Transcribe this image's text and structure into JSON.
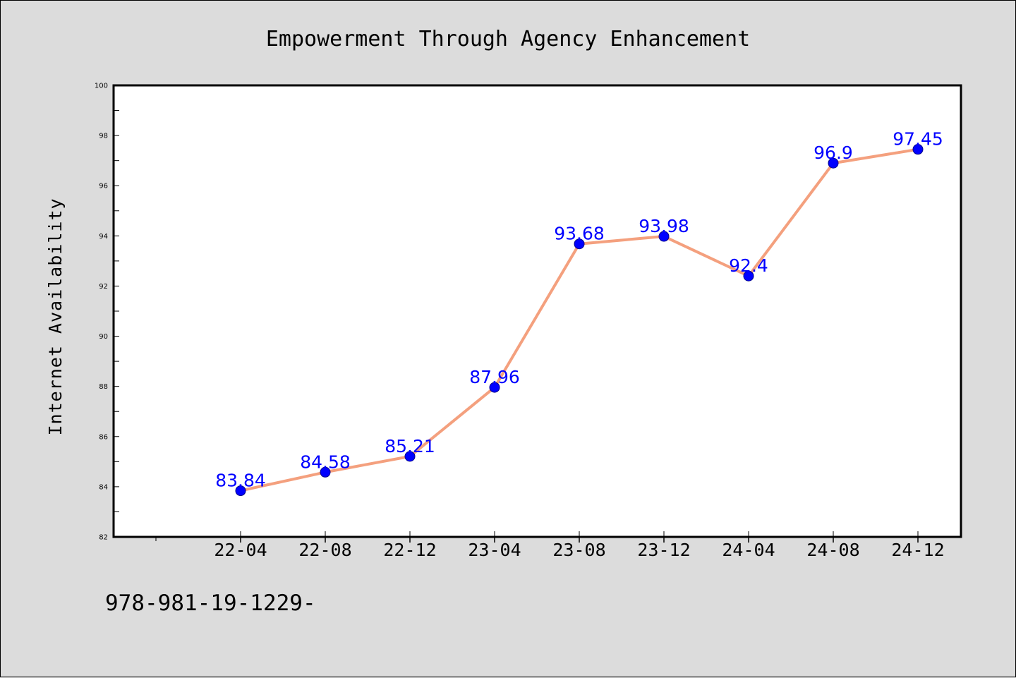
{
  "chart_data": {
    "type": "line",
    "title": "Empowerment Through Agency Enhancement",
    "xlabel": "",
    "ylabel": "Internet Availability",
    "categories": [
      "22-04",
      "22-08",
      "22-12",
      "23-04",
      "23-08",
      "23-12",
      "24-04",
      "24-08",
      "24-12"
    ],
    "series": [
      {
        "values": [
          83.84,
          84.58,
          85.21,
          87.96,
          93.68,
          93.98,
          92.4,
          96.9,
          97.45
        ]
      }
    ],
    "data_labels": [
      "83.84",
      "84.58",
      "85.21",
      "87.96",
      "93.68",
      "93.98",
      "92.4",
      "96.9",
      "97.45"
    ],
    "ylim": [
      82,
      100
    ],
    "yticks": [
      82,
      84,
      86,
      88,
      90,
      92,
      94,
      96,
      98,
      100
    ],
    "ytick_labels": [
      "82",
      "84",
      "86",
      "88",
      "90",
      "92",
      "94",
      "96",
      "98",
      "100"
    ],
    "grid": false,
    "legend": "none",
    "colors": {
      "line": "#f4a07e",
      "marker": "#0000ff",
      "data_label": "#0000ff",
      "background": "#dcdcdc",
      "plot_background": "#ffffff"
    }
  },
  "footer": {
    "text": "978-981-19-1229-"
  }
}
